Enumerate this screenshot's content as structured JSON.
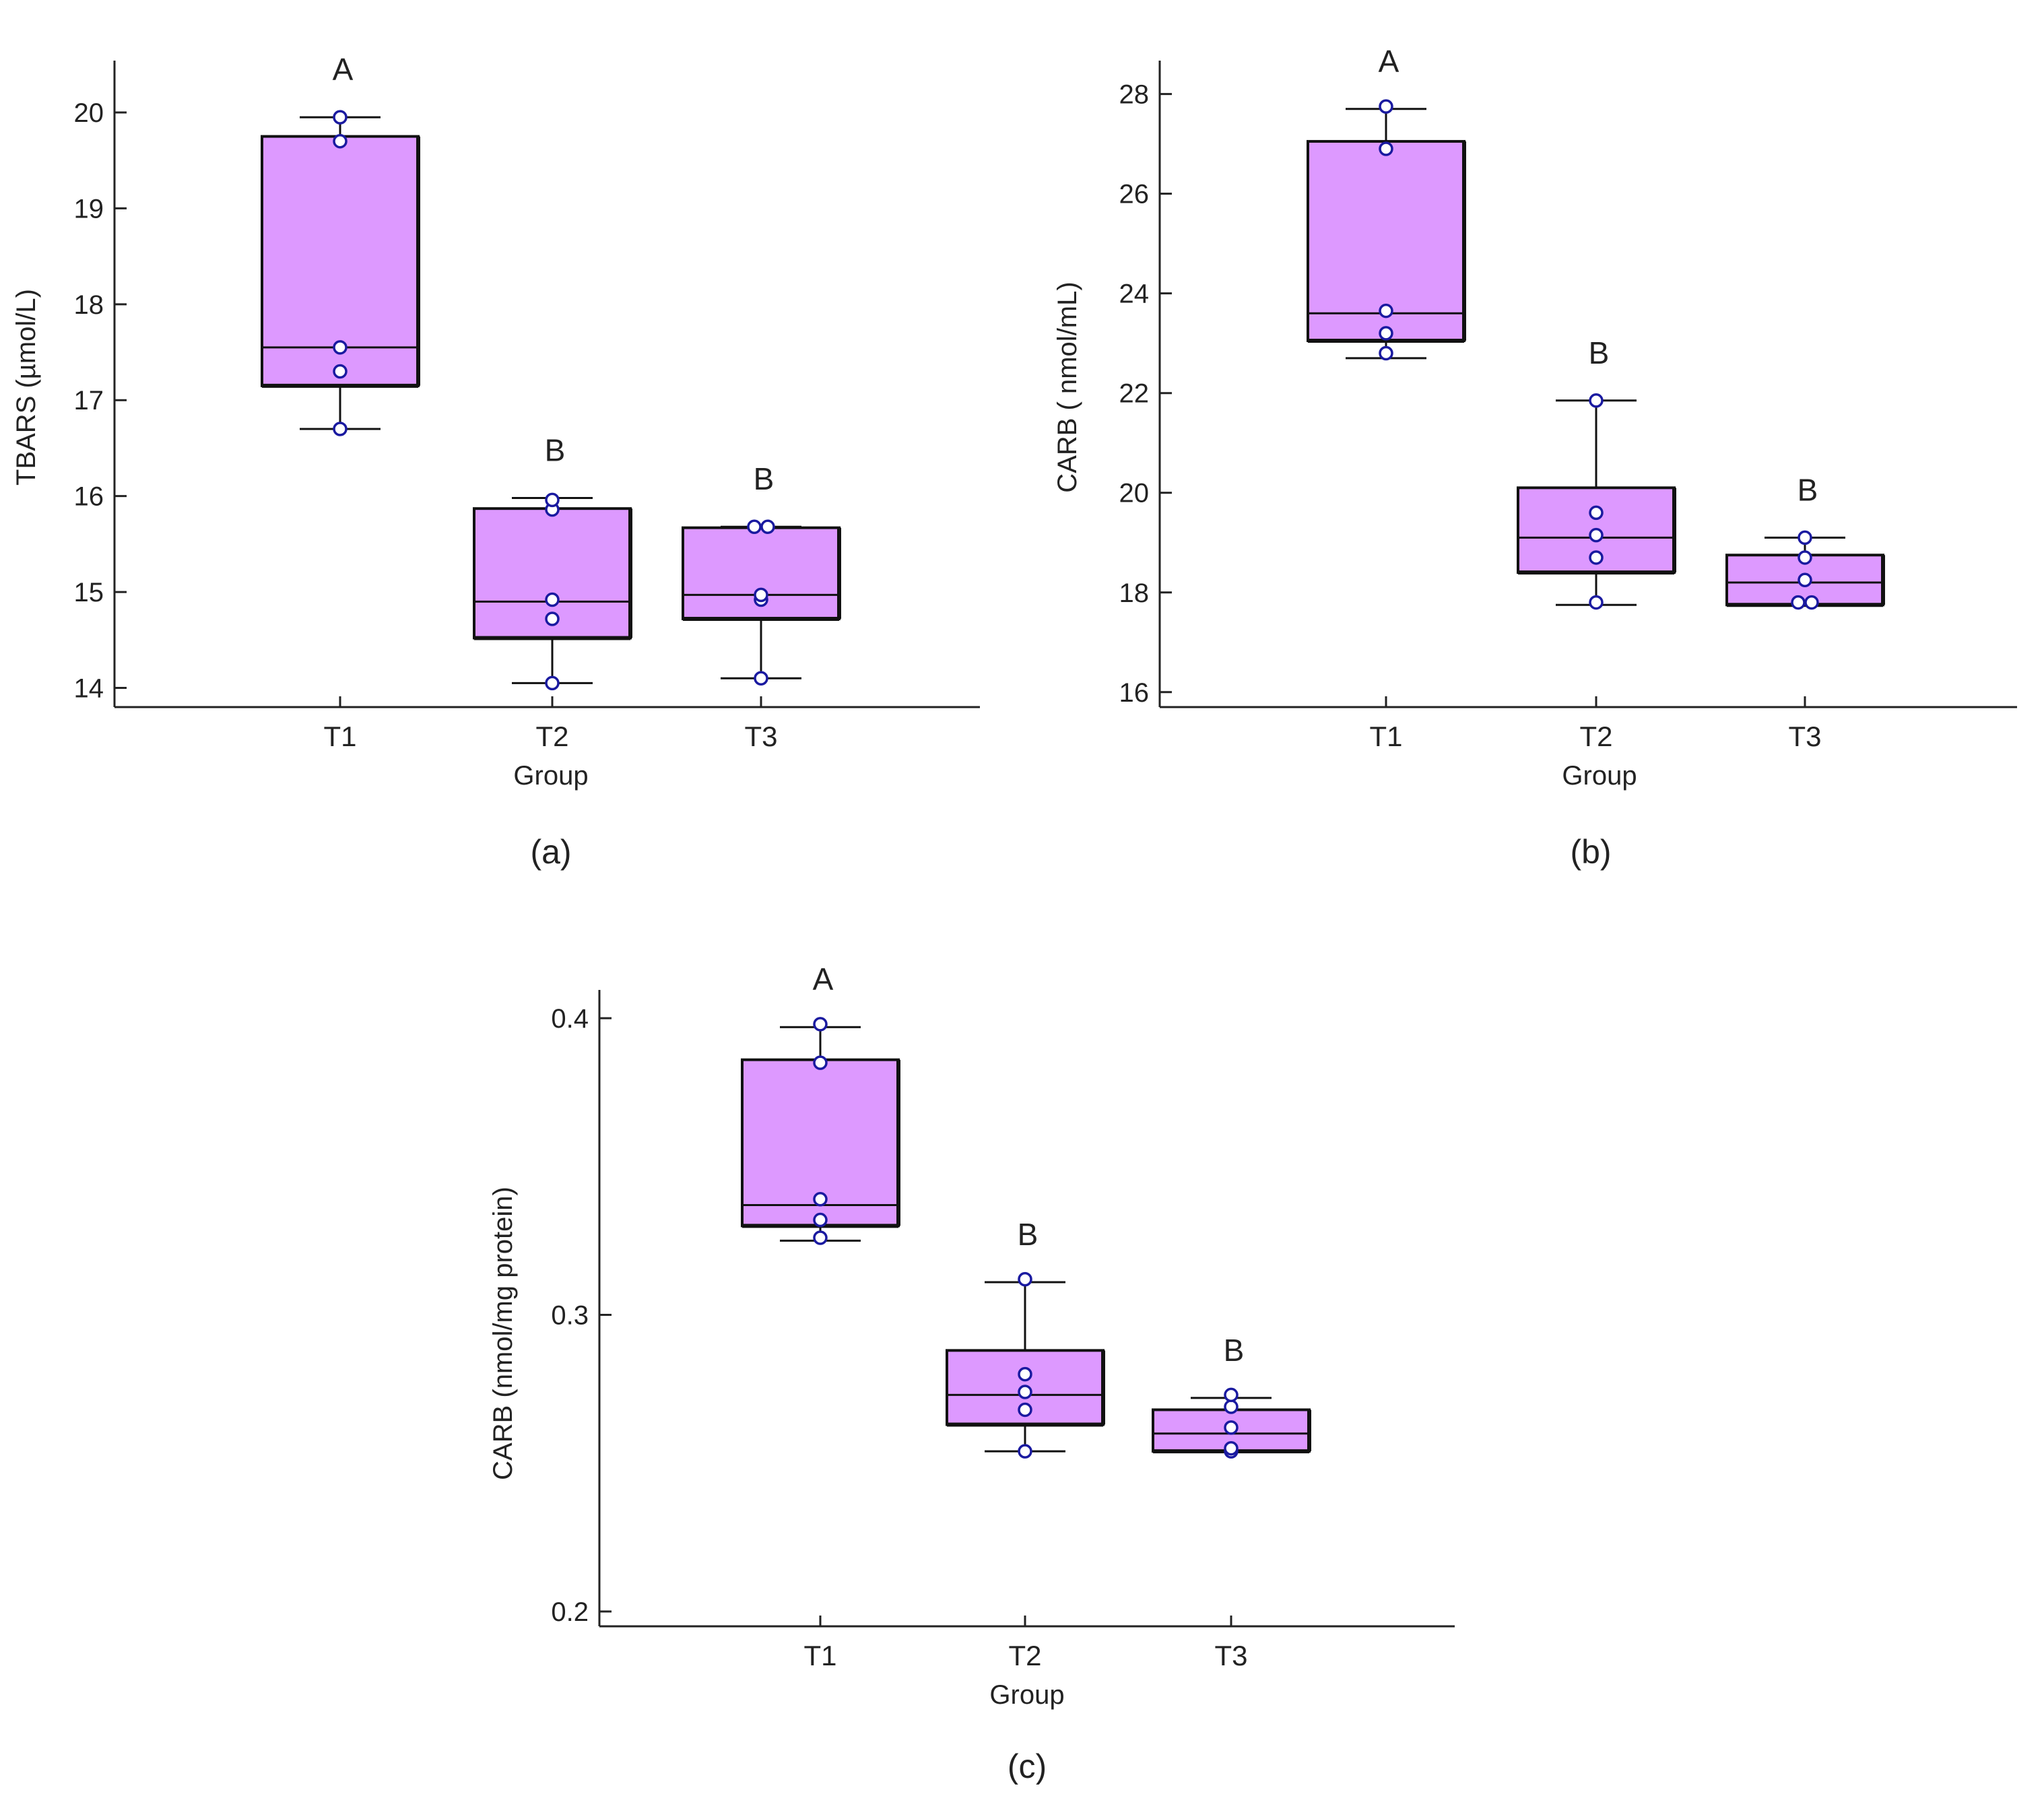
{
  "colors": {
    "box_fill": "#dd99ff",
    "box_stroke": "#111111",
    "point_fill": "#ffffff",
    "point_stroke": "#1a1aa0",
    "axis": "#222222"
  },
  "chart_data": [
    {
      "type": "box",
      "caption": "(a)",
      "xlabel": "Group",
      "ylabel": "TBARS (µmol/L)",
      "ylim": [
        13.8,
        20.4
      ],
      "yticks": [
        14,
        15,
        16,
        17,
        18,
        19,
        20
      ],
      "categories": [
        "T1",
        "T2",
        "T3"
      ],
      "groups": [
        {
          "name": "T1",
          "letter": "A",
          "whisker_low": 16.7,
          "q1": 17.15,
          "median": 17.55,
          "q3": 19.75,
          "whisker_high": 19.95,
          "points": [
            16.7,
            17.3,
            17.55,
            19.7,
            19.95
          ]
        },
        {
          "name": "T2",
          "letter": "B",
          "whisker_low": 14.05,
          "q1": 14.52,
          "median": 14.9,
          "q3": 15.87,
          "whisker_high": 15.98,
          "points": [
            14.05,
            14.72,
            14.92,
            15.86,
            15.96
          ]
        },
        {
          "name": "T3",
          "letter": "B",
          "whisker_low": 14.1,
          "q1": 14.72,
          "median": 14.97,
          "q3": 15.67,
          "whisker_high": 15.68,
          "points": [
            14.1,
            14.92,
            14.97,
            15.68,
            15.68
          ]
        }
      ]
    },
    {
      "type": "box",
      "caption": "(b)",
      "xlabel": "Group",
      "ylabel": "CARB ( nmol/mL)",
      "ylim": [
        15.7,
        28.4
      ],
      "yticks": [
        16,
        18,
        20,
        22,
        24,
        26,
        28
      ],
      "categories": [
        "T1",
        "T2",
        "T3"
      ],
      "groups": [
        {
          "name": "T1",
          "letter": "A",
          "whisker_low": 22.7,
          "q1": 23.05,
          "median": 23.6,
          "q3": 27.05,
          "whisker_high": 27.7,
          "points": [
            22.8,
            23.2,
            23.65,
            26.9,
            27.75
          ]
        },
        {
          "name": "T2",
          "letter": "B",
          "whisker_low": 17.75,
          "q1": 18.4,
          "median": 19.1,
          "q3": 20.1,
          "whisker_high": 21.85,
          "points": [
            17.8,
            18.7,
            19.15,
            19.6,
            21.85
          ]
        },
        {
          "name": "T3",
          "letter": "B",
          "whisker_low": 17.75,
          "q1": 17.75,
          "median": 18.2,
          "q3": 18.75,
          "whisker_high": 19.1,
          "points": [
            17.8,
            17.8,
            18.25,
            18.7,
            19.1
          ]
        }
      ]
    },
    {
      "type": "box",
      "caption": "(c)",
      "xlabel": "Group",
      "ylabel": "CARB (nmol/mg protein)",
      "ylim": [
        0.195,
        0.405
      ],
      "yticks": [
        0.2,
        0.3,
        0.4
      ],
      "categories": [
        "T1",
        "T2",
        "T3"
      ],
      "groups": [
        {
          "name": "T1",
          "letter": "A",
          "whisker_low": 0.325,
          "q1": 0.33,
          "median": 0.337,
          "q3": 0.386,
          "whisker_high": 0.397,
          "points": [
            0.326,
            0.332,
            0.339,
            0.385,
            0.398
          ]
        },
        {
          "name": "T2",
          "letter": "B",
          "whisker_low": 0.254,
          "q1": 0.263,
          "median": 0.273,
          "q3": 0.288,
          "whisker_high": 0.311,
          "points": [
            0.254,
            0.268,
            0.274,
            0.28,
            0.312
          ]
        },
        {
          "name": "T3",
          "letter": "B",
          "whisker_low": 0.254,
          "q1": 0.254,
          "median": 0.26,
          "q3": 0.268,
          "whisker_high": 0.272,
          "points": [
            0.254,
            0.255,
            0.262,
            0.269,
            0.273
          ]
        }
      ]
    }
  ]
}
